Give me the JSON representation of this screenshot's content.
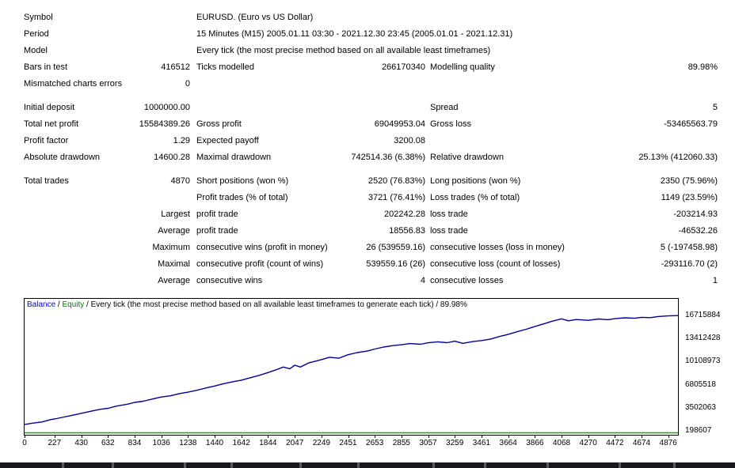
{
  "report": {
    "rows": [
      {
        "l1": "Symbol",
        "wide": "EURUSD. (Euro vs US Dollar)"
      },
      {
        "l1": "Period",
        "wide": "15 Minutes (M15) 2005.01.11 03:30 - 2021.12.30 23:45 (2005.01.01 - 2021.12.31)"
      },
      {
        "l1": "Model",
        "wide": "Every tick (the most precise method based on all available least timeframes)"
      },
      {
        "l1": "Bars in test",
        "v1": "416512",
        "l2": "Ticks modelled",
        "v2": "266170340",
        "l3": "Modelling quality",
        "v3": "89.98%"
      },
      {
        "l1": "Mismatched charts errors",
        "v1": "0"
      },
      {
        "gap": true,
        "l1": "Initial deposit",
        "v1": "1000000.00",
        "l3": "Spread",
        "v3": "5"
      },
      {
        "l1": "Total net profit",
        "v1": "15584389.26",
        "l2": "Gross profit",
        "v2": "69049953.04",
        "l3": "Gross loss",
        "v3": "-53465563.79"
      },
      {
        "l1": "Profit factor",
        "v1": "1.29",
        "l2": "Expected payoff",
        "v2": "3200.08"
      },
      {
        "l1": "Absolute drawdown",
        "v1": "14600.28",
        "l2": "Maximal drawdown",
        "v2": "742514.36 (6.38%)",
        "l3": "Relative drawdown",
        "v3": "25.13% (412060.33)"
      },
      {
        "gap": true,
        "l1": "Total trades",
        "v1": "4870",
        "l2": "Short positions (won %)",
        "v2": "2520 (76.83%)",
        "l3": "Long positions (won %)",
        "v3": "2350 (75.96%)"
      },
      {
        "l2": "Profit trades (% of total)",
        "v2": "3721 (76.41%)",
        "l3": "Loss trades (% of total)",
        "v3": "1149 (23.59%)"
      },
      {
        "v1": "Largest",
        "l2": "profit trade",
        "v2": "202242.28",
        "l3": "loss trade",
        "v3": "-203214.93"
      },
      {
        "v1": "Average",
        "l2": "profit trade",
        "v2": "18556.83",
        "l3": "loss trade",
        "v3": "-46532.26"
      },
      {
        "v1": "Maximum",
        "l2": "consecutive wins (profit in money)",
        "v2": "26 (539559.16)",
        "l3": "consecutive losses (loss in money)",
        "v3": "5 (-197458.98)"
      },
      {
        "v1": "Maximal",
        "l2": "consecutive profit (count of wins)",
        "v2": "539559.16 (26)",
        "l3": "consecutive loss (count of losses)",
        "v3": "-293116.70 (2)"
      },
      {
        "v1": "Average",
        "l2": "consecutive wins",
        "v2": "4",
        "l3": "consecutive losses",
        "v3": "1"
      }
    ]
  },
  "chart_data": {
    "type": "line",
    "legend": {
      "balance": "Balance",
      "sep": " / ",
      "equity": "Equity",
      "rest": " / Every tick (the most precise method based on all available least timeframes to generate each tick) / 89.98%"
    },
    "colors": {
      "balance_text": "#0000ff",
      "equity_text": "#008000",
      "balance_line": "#000098",
      "axis_line": "#00b400"
    },
    "xlim": [
      0,
      4950
    ],
    "ylim": [
      198607,
      16715884
    ],
    "y_ticks": [
      16715884,
      13412428,
      10108973,
      6805518,
      3502063,
      198607
    ],
    "x_ticks": [
      0,
      227,
      430,
      632,
      834,
      1036,
      1238,
      1440,
      1642,
      1844,
      2047,
      2249,
      2451,
      2653,
      2855,
      3057,
      3259,
      3461,
      3664,
      3866,
      4068,
      4270,
      4472,
      4674,
      4876
    ],
    "series": [
      {
        "name": "Balance",
        "points": [
          [
            0,
            1000000
          ],
          [
            60,
            1180000
          ],
          [
            130,
            1350000
          ],
          [
            200,
            1700000
          ],
          [
            227,
            1780000
          ],
          [
            300,
            2060000
          ],
          [
            380,
            2380000
          ],
          [
            430,
            2600000
          ],
          [
            500,
            2880000
          ],
          [
            570,
            3160000
          ],
          [
            632,
            3310000
          ],
          [
            700,
            3640000
          ],
          [
            780,
            3900000
          ],
          [
            834,
            4160000
          ],
          [
            900,
            4330000
          ],
          [
            980,
            4690000
          ],
          [
            1036,
            4930000
          ],
          [
            1100,
            5090000
          ],
          [
            1180,
            5440000
          ],
          [
            1238,
            5620000
          ],
          [
            1300,
            5880000
          ],
          [
            1380,
            6240000
          ],
          [
            1440,
            6500000
          ],
          [
            1500,
            6790000
          ],
          [
            1580,
            7120000
          ],
          [
            1642,
            7340000
          ],
          [
            1700,
            7630000
          ],
          [
            1780,
            8040000
          ],
          [
            1844,
            8420000
          ],
          [
            1900,
            8790000
          ],
          [
            1960,
            9210000
          ],
          [
            2010,
            8980000
          ],
          [
            2047,
            9480000
          ],
          [
            2090,
            9220000
          ],
          [
            2150,
            9790000
          ],
          [
            2249,
            10280000
          ],
          [
            2310,
            10620000
          ],
          [
            2380,
            10480000
          ],
          [
            2451,
            10980000
          ],
          [
            2520,
            11280000
          ],
          [
            2600,
            11520000
          ],
          [
            2653,
            11790000
          ],
          [
            2720,
            12080000
          ],
          [
            2790,
            12280000
          ],
          [
            2855,
            12400000
          ],
          [
            2920,
            12580000
          ],
          [
            3000,
            12470000
          ],
          [
            3057,
            12690000
          ],
          [
            3130,
            12820000
          ],
          [
            3200,
            12700000
          ],
          [
            3259,
            12910000
          ],
          [
            3320,
            12610000
          ],
          [
            3400,
            12880000
          ],
          [
            3461,
            13010000
          ],
          [
            3530,
            13220000
          ],
          [
            3600,
            13590000
          ],
          [
            3664,
            13900000
          ],
          [
            3740,
            14320000
          ],
          [
            3800,
            14620000
          ],
          [
            3866,
            15010000
          ],
          [
            3930,
            15380000
          ],
          [
            4000,
            15790000
          ],
          [
            4068,
            16120000
          ],
          [
            4120,
            15830000
          ],
          [
            4180,
            16010000
          ],
          [
            4270,
            15900000
          ],
          [
            4350,
            16090000
          ],
          [
            4420,
            15990000
          ],
          [
            4472,
            16140000
          ],
          [
            4550,
            16260000
          ],
          [
            4620,
            16190000
          ],
          [
            4674,
            16330000
          ],
          [
            4740,
            16290000
          ],
          [
            4800,
            16440000
          ],
          [
            4876,
            16540000
          ],
          [
            4950,
            16584389
          ]
        ]
      }
    ]
  }
}
